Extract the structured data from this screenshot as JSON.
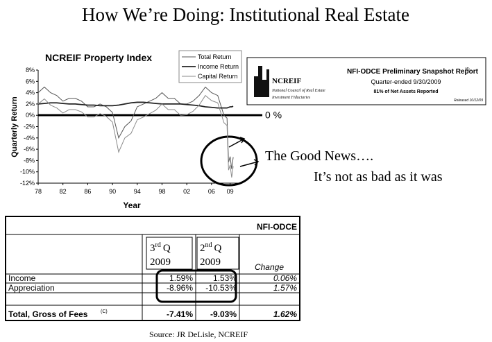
{
  "slide": {
    "title": "How We’re Doing: Institutional Real Estate",
    "zero_label": "0 %",
    "good_news": "The Good News….",
    "not_as_bad": "It’s not as bad as it was",
    "source": "Source: JR DeLisle, NCREIF"
  },
  "chart_data": {
    "type": "line",
    "title": "NCREIF Property Index",
    "x_label": "Year",
    "y_label": "Quarterly Return",
    "x": [
      1978,
      1979,
      1980,
      1981,
      1982,
      1983,
      1984,
      1985,
      1986,
      1987,
      1988,
      1989,
      1990,
      1991,
      1992,
      1993,
      1994,
      1995,
      1996,
      1997,
      1998,
      1999,
      2000,
      2001,
      2002,
      2003,
      2004,
      2005,
      2006,
      2007,
      2008,
      2008.5,
      2008.75,
      2009,
      2009.25,
      2009.5
    ],
    "series": [
      {
        "name": "Total Return",
        "color": "#555555",
        "values": [
          4,
          5,
          4,
          3.5,
          2.5,
          3,
          3,
          2.5,
          1.5,
          1.5,
          2,
          1.5,
          0.5,
          -4,
          -2,
          -1,
          1.5,
          2,
          2.5,
          3,
          4,
          3,
          3,
          2,
          2,
          2.5,
          3.5,
          5,
          4,
          3.5,
          0,
          -0.5,
          -8.3,
          -7.3,
          -9.5,
          -7.4
        ]
      },
      {
        "name": "Income Return",
        "color": "#222222",
        "values": [
          2,
          2.1,
          2.2,
          2.2,
          2.1,
          2,
          2,
          1.9,
          1.8,
          1.8,
          1.7,
          1.7,
          1.7,
          1.8,
          2,
          2.2,
          2.3,
          2.3,
          2.2,
          2.1,
          2,
          2,
          2,
          2,
          1.9,
          1.8,
          1.7,
          1.5,
          1.4,
          1.3,
          1.3,
          1.3,
          1.4,
          1.5,
          1.5,
          1.6
        ]
      },
      {
        "name": "Capital Return",
        "color": "#8a8a8a",
        "values": [
          2,
          2.9,
          1.8,
          1.3,
          0.4,
          1,
          1,
          0.6,
          -0.3,
          -0.3,
          0.3,
          -0.2,
          -1.2,
          -6.5,
          -4,
          -3.2,
          -0.8,
          -0.3,
          0.3,
          0.9,
          2,
          1,
          1,
          0,
          0.1,
          0.7,
          1.8,
          3.5,
          2.6,
          2.2,
          -1.3,
          -1.8,
          -9.7,
          -8.8,
          -11,
          -9
        ]
      }
    ],
    "xlim": [
      1978,
      2010.5
    ],
    "xticks": [
      {
        "value": 1978,
        "label": "78"
      },
      {
        "value": 1982,
        "label": "82"
      },
      {
        "value": 1986,
        "label": "86"
      },
      {
        "value": 1990,
        "label": "90"
      },
      {
        "value": 1994,
        "label": "94"
      },
      {
        "value": 1998,
        "label": "98"
      },
      {
        "value": 2002,
        "label": "02"
      },
      {
        "value": 2006,
        "label": "06"
      },
      {
        "value": 2009,
        "label": "09"
      }
    ],
    "ylim": [
      -12,
      8
    ],
    "yticks": [
      {
        "value": -12,
        "label": "-12%"
      },
      {
        "value": -10,
        "label": "-10%"
      },
      {
        "value": -8,
        "label": "-8%"
      },
      {
        "value": -6,
        "label": "-6%"
      },
      {
        "value": -4,
        "label": "-4%"
      },
      {
        "value": -2,
        "label": "-2%"
      },
      {
        "value": 0,
        "label": "0%"
      },
      {
        "value": 2,
        "label": "2%"
      },
      {
        "value": 4,
        "label": "4%"
      },
      {
        "value": 6,
        "label": "6%"
      },
      {
        "value": 8,
        "label": "8%"
      }
    ],
    "legend": "upper right"
  },
  "snapshot": {
    "title": "NFI-ODCE Preliminary Snapshot Report",
    "title_note": "(A)",
    "brand": "NCREIF",
    "brand_line1": "National Council of Real Estate",
    "brand_line2": "Investment Fiduciaries",
    "quarter": "Quarter-ended 9/30/2009",
    "assets": "81% of Net Assets Reported",
    "released": "Released 10/12/09"
  },
  "table": {
    "title": "NFI-ODCE",
    "columns": [
      {
        "num": "3",
        "sup": "rd",
        "q": "Q",
        "year": "2009"
      },
      {
        "num": "2",
        "sup": "nd",
        "q": "Q",
        "year": "2009"
      },
      {
        "label": "Change"
      }
    ],
    "rows": [
      [
        "Income",
        "1.59%",
        "1.53%",
        "0.06%"
      ],
      [
        "Appreciation",
        "-8.96%",
        "-10.53%",
        "1.57%"
      ],
      [
        "Total, Gross of Fees",
        "-7.41%",
        "-9.03%",
        "1.62%"
      ]
    ],
    "total_note": "(C)"
  }
}
